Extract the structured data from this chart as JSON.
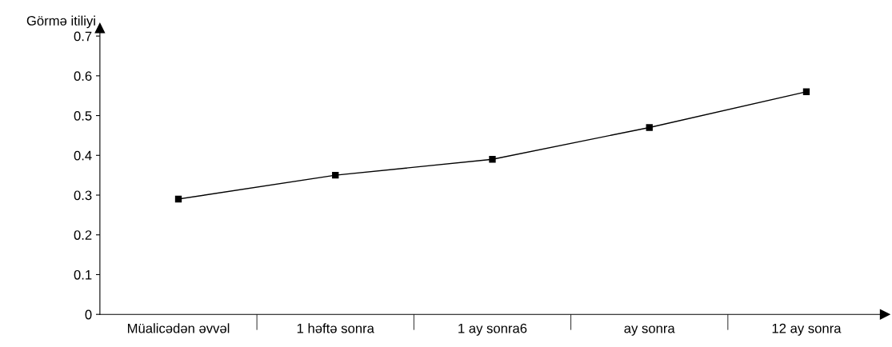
{
  "chart_data": {
    "type": "line",
    "ylabel": "Görmə itiliyi",
    "categories": [
      "Müalicədən əvvəl",
      "1 həftə sonra",
      "1 ay sonra6",
      "ay sonra",
      "12 ay sonra"
    ],
    "series": [
      {
        "color": "#000000",
        "values": [
          0.29,
          0.35,
          0.39,
          0.47,
          0.56
        ]
      }
    ],
    "ylim": [
      0,
      0.72
    ],
    "yticks": [
      0,
      0.1,
      0.2,
      0.3,
      0.4,
      0.5,
      0.6,
      0.7
    ],
    "marker": "square",
    "line_style": "solid",
    "grid": false,
    "legend": false
  }
}
